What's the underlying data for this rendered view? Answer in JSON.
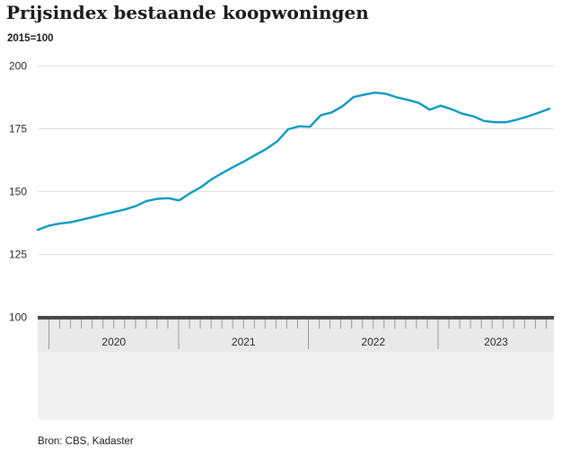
{
  "header": {
    "title": "Prijsindex bestaande koopwoningen",
    "subtitle": "2015=100"
  },
  "footer": {
    "source": "Bron: CBS, Kadaster",
    "logo_icon": "cbs-logo"
  },
  "chart_data": {
    "type": "line",
    "title": "Prijsindex bestaande koopwoningen",
    "unit_label": "2015=100",
    "x": [
      "2019-12",
      "2020-01",
      "2020-02",
      "2020-03",
      "2020-04",
      "2020-05",
      "2020-06",
      "2020-07",
      "2020-08",
      "2020-09",
      "2020-10",
      "2020-11",
      "2020-12",
      "2021-01",
      "2021-02",
      "2021-03",
      "2021-04",
      "2021-05",
      "2021-06",
      "2021-07",
      "2021-08",
      "2021-09",
      "2021-10",
      "2021-11",
      "2021-12",
      "2022-01",
      "2022-02",
      "2022-03",
      "2022-04",
      "2022-05",
      "2022-06",
      "2022-07",
      "2022-08",
      "2022-09",
      "2022-10",
      "2022-11",
      "2022-12",
      "2023-01",
      "2023-02",
      "2023-03",
      "2023-04",
      "2023-05",
      "2023-06",
      "2023-07",
      "2023-08",
      "2023-09",
      "2023-10",
      "2023-11"
    ],
    "values": [
      134.8,
      136.4,
      137.3,
      137.8,
      138.8,
      139.8,
      140.9,
      141.9,
      142.9,
      144.2,
      146.3,
      147.1,
      147.4,
      146.5,
      149.4,
      151.8,
      155.0,
      157.5,
      159.9,
      162.1,
      164.6,
      167.0,
      170.0,
      174.8,
      176.0,
      175.8,
      180.4,
      181.5,
      184.0,
      187.6,
      188.6,
      189.4,
      188.9,
      187.5,
      186.5,
      185.3,
      182.6,
      184.2,
      182.8,
      181.0,
      180.0,
      178.1,
      177.6,
      177.6,
      178.6,
      179.9,
      181.4,
      183.0
    ],
    "ylim": [
      100,
      200
    ],
    "yticks": [
      100,
      125,
      150,
      175,
      200
    ],
    "ytick_labels": [
      "100",
      "125",
      "150",
      "175",
      "200"
    ],
    "year_labels": [
      "2020",
      "2021",
      "2022",
      "2023"
    ],
    "grid": "horizontal-only",
    "legend": "none",
    "colors": {
      "line": "#0d9ac2",
      "grid": "#e0e0e0",
      "axis_bar": "#474747",
      "band": "#e9e9e9",
      "band_lower": "#f1f1f1",
      "tick": "#9a9a9a",
      "logo": "#9e9e9e"
    },
    "source": "Bron: CBS, Kadaster"
  }
}
